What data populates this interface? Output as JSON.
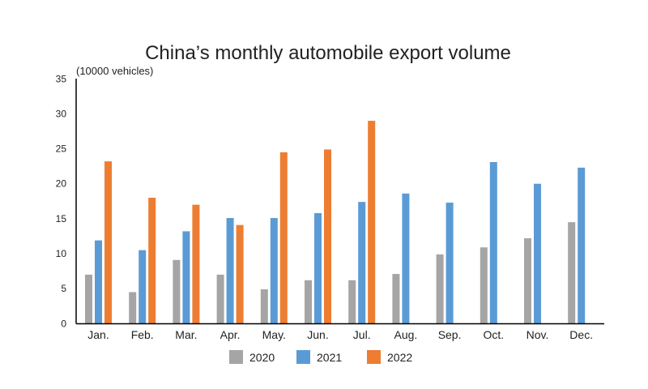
{
  "chart_data": {
    "type": "bar",
    "title": "China’s monthly automobile export volume",
    "ylabel": "(10000 vehicles)",
    "xlabel": "",
    "ylim": [
      0,
      35
    ],
    "yticks": [
      0,
      5,
      10,
      15,
      20,
      25,
      30,
      35
    ],
    "grid": false,
    "legend_position": "bottom",
    "categories": [
      "Jan.",
      "Feb.",
      "Mar.",
      "Apr.",
      "May.",
      "Jun.",
      "Jul.",
      "Aug.",
      "Sep.",
      "Oct.",
      "Nov.",
      "Dec."
    ],
    "series": [
      {
        "name": "2020",
        "color": "#a5a5a5",
        "values": [
          7.0,
          4.5,
          9.1,
          7.0,
          4.9,
          6.2,
          6.2,
          7.1,
          9.9,
          10.9,
          12.2,
          14.5
        ]
      },
      {
        "name": "2021",
        "color": "#5b9bd5",
        "values": [
          11.9,
          10.5,
          13.2,
          15.1,
          15.1,
          15.8,
          17.4,
          18.6,
          17.3,
          23.1,
          20.0,
          22.3
        ]
      },
      {
        "name": "2022",
        "color": "#ed7d31",
        "values": [
          23.2,
          18.0,
          17.0,
          14.1,
          24.5,
          24.9,
          29.0,
          null,
          null,
          null,
          null,
          null
        ]
      }
    ]
  }
}
